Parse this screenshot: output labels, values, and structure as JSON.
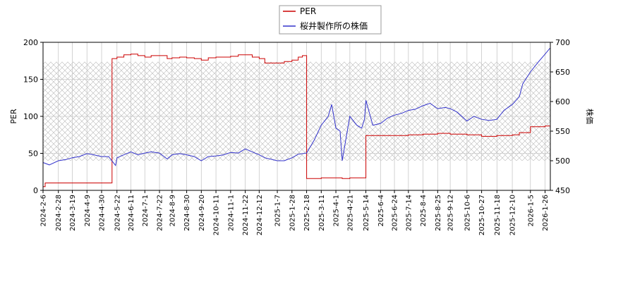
{
  "chart_data": {
    "type": "line",
    "left_axis": {
      "label": "PER",
      "ylim": [
        0,
        200
      ],
      "ticks": [
        "0",
        "50",
        "100",
        "150",
        "200"
      ]
    },
    "right_axis": {
      "label": "株価",
      "ylim": [
        450,
        700
      ],
      "ticks": [
        "450",
        "500",
        "550",
        "600",
        "650",
        "700"
      ]
    },
    "x_ticks": [
      "2024-2-6",
      "2024-2-28",
      "2024-3-19",
      "2024-4-9",
      "2024-4-30",
      "2024-5-22",
      "2024-6-11",
      "2024-7-1",
      "2024-7-22",
      "2024-8-9",
      "2024-8-30",
      "2024-9-20",
      "2024-10-11",
      "2024-11-1",
      "2024-11-22",
      "2024-12-12",
      "2025-1-7",
      "2025-1-28",
      "2025-2-18",
      "2025-3-11",
      "2025-4-1",
      "2025-4-21",
      "2025-5-14",
      "2025-6-4",
      "2025-6-24",
      "2025-7-14",
      "2025-8-4",
      "2025-8-25",
      "2025-9-12",
      "2025-10-6",
      "2025-10-27",
      "2025-11-18",
      "2025-12-10",
      "2026-1-5",
      "2026-1-26"
    ],
    "grid": true,
    "legend_position": "top-center",
    "series": [
      {
        "name": "PER",
        "axis": "left",
        "color": "#cc0000",
        "x": [
          "2024-2-6",
          "2024-2-9",
          "2024-2-28",
          "2024-3-19",
          "2024-4-9",
          "2024-5-14",
          "2024-5-15",
          "2024-5-22",
          "2024-6-1",
          "2024-6-11",
          "2024-6-21",
          "2024-7-1",
          "2024-7-10",
          "2024-7-22",
          "2024-8-2",
          "2024-8-9",
          "2024-8-20",
          "2024-8-30",
          "2024-9-10",
          "2024-9-20",
          "2024-9-30",
          "2024-10-11",
          "2024-10-22",
          "2024-11-1",
          "2024-11-12",
          "2024-11-22",
          "2024-12-2",
          "2024-12-12",
          "2024-12-20",
          "2025-1-7",
          "2025-1-17",
          "2025-1-28",
          "2025-2-6",
          "2025-2-12",
          "2025-2-18",
          "2025-3-1",
          "2025-3-11",
          "2025-3-21",
          "2025-4-1",
          "2025-4-10",
          "2025-4-21",
          "2025-5-1",
          "2025-5-12",
          "2025-5-13",
          "2025-5-14",
          "2025-6-4",
          "2025-6-24",
          "2025-7-14",
          "2025-8-4",
          "2025-8-25",
          "2025-9-12",
          "2025-10-6",
          "2025-10-27",
          "2025-11-18",
          "2025-12-1",
          "2025-12-10",
          "2025-12-20",
          "2026-1-5",
          "2026-1-26",
          "2026-2-2"
        ],
        "values": [
          5,
          10,
          10,
          10,
          10,
          10,
          178,
          180,
          183,
          184,
          182,
          180,
          182,
          182,
          178,
          179,
          180,
          179,
          178,
          176,
          179,
          180,
          180,
          181,
          183,
          183,
          180,
          178,
          172,
          172,
          174,
          176,
          180,
          182,
          16,
          16,
          17,
          17,
          17,
          16,
          17,
          17,
          17,
          17,
          74,
          74,
          74,
          75,
          76,
          77,
          76,
          75,
          73,
          74,
          74,
          75,
          78,
          86,
          87,
          87
        ]
      },
      {
        "name": "桜井製作所の株価",
        "axis": "right",
        "color": "#3333cc",
        "x": [
          "2024-2-6",
          "2024-2-15",
          "2024-2-28",
          "2024-3-10",
          "2024-3-19",
          "2024-3-29",
          "2024-4-9",
          "2024-4-19",
          "2024-4-30",
          "2024-5-10",
          "2024-5-20",
          "2024-5-22",
          "2024-6-1",
          "2024-6-11",
          "2024-6-21",
          "2024-7-1",
          "2024-7-10",
          "2024-7-22",
          "2024-8-2",
          "2024-8-9",
          "2024-8-20",
          "2024-8-30",
          "2024-9-10",
          "2024-9-20",
          "2024-9-30",
          "2024-10-11",
          "2024-10-22",
          "2024-11-1",
          "2024-11-12",
          "2024-11-22",
          "2024-12-2",
          "2024-12-12",
          "2024-12-20",
          "2025-1-7",
          "2025-1-17",
          "2025-1-28",
          "2025-2-6",
          "2025-2-18",
          "2025-3-1",
          "2025-3-11",
          "2025-3-21",
          "2025-3-26",
          "2025-4-1",
          "2025-4-7",
          "2025-4-10",
          "2025-4-21",
          "2025-5-1",
          "2025-5-8",
          "2025-5-12",
          "2025-5-14",
          "2025-5-24",
          "2025-6-4",
          "2025-6-14",
          "2025-6-24",
          "2025-7-4",
          "2025-7-14",
          "2025-7-24",
          "2025-8-4",
          "2025-8-14",
          "2025-8-25",
          "2025-9-5",
          "2025-9-12",
          "2025-9-22",
          "2025-10-6",
          "2025-10-16",
          "2025-10-27",
          "2025-11-7",
          "2025-11-18",
          "2025-11-28",
          "2025-12-10",
          "2025-12-20",
          "2025-12-25",
          "2026-1-5",
          "2026-1-15",
          "2026-1-26",
          "2026-2-2"
        ],
        "values": [
          497,
          493,
          500,
          502,
          505,
          507,
          512,
          510,
          507,
          507,
          492,
          505,
          510,
          515,
          510,
          513,
          515,
          513,
          503,
          510,
          512,
          510,
          507,
          500,
          507,
          508,
          510,
          514,
          513,
          520,
          515,
          510,
          505,
          500,
          500,
          505,
          511,
          513,
          535,
          560,
          575,
          595,
          555,
          550,
          500,
          575,
          560,
          555,
          570,
          602,
          560,
          563,
          572,
          577,
          580,
          585,
          587,
          593,
          597,
          588,
          590,
          588,
          582,
          567,
          575,
          570,
          568,
          570,
          585,
          595,
          608,
          630,
          650,
          665,
          680,
          690
        ]
      }
    ]
  }
}
